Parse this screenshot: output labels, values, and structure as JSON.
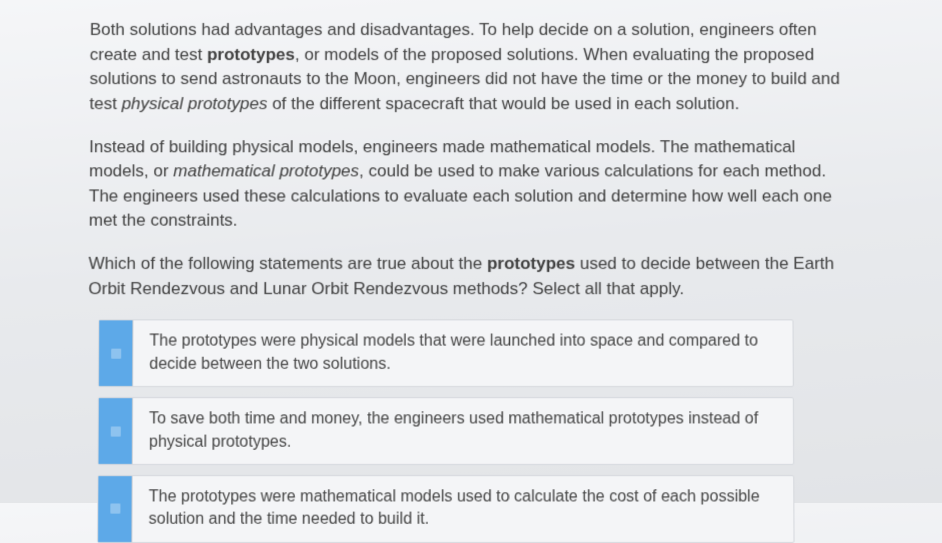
{
  "paragraphs": {
    "p1_pre": "Both solutions had advantages and disadvantages. To help decide on a solution, engineers often create and test ",
    "p1_b1": "prototypes",
    "p1_mid1": ", or models of the proposed solutions. When evaluating the proposed solutions to send astronauts to the Moon, engineers did not have the time or the money to build and test ",
    "p1_i1": "physical prototypes",
    "p1_post": " of the different spacecraft that would be used in each solution.",
    "p2_pre": "Instead of building physical models, engineers made mathematical models. The mathematical models, or ",
    "p2_i1": "mathematical prototypes",
    "p2_post": ", could be used to make various calculations for each method. The engineers used these calculations to evaluate each solution and determine how well each one met the constraints."
  },
  "question": {
    "pre": "Which of the following statements are true about the ",
    "b1": "prototypes",
    "post": " used to decide between the Earth Orbit Rendezvous and Lunar Orbit Rendezvous methods? Select all that apply."
  },
  "options": {
    "opt1": "The prototypes were physical models that were launched into space and compared to decide between the two solutions.",
    "opt2": "To save both time and money, the engineers used mathematical prototypes instead of physical prototypes.",
    "opt3": "The prototypes were mathematical models used to calculate the cost of each possible solution and the time needed to build it."
  },
  "colors": {
    "checkbox_bg": "#5da9e8",
    "option_border": "#d5d8dd",
    "option_bg": "#f4f5f7",
    "text": "#404040"
  }
}
